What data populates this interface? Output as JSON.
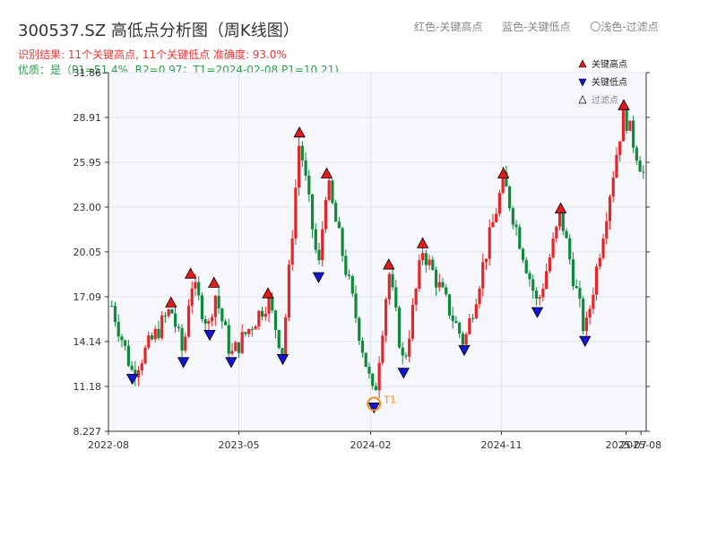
{
  "header": {
    "title": "300537.SZ 高低点分析图（周K线图）",
    "result_line": "识别结果: 11个关键高点, 11个关键低点   准确度: 93.0%",
    "quality_line": "优质：是（P1=51.4%, R2=0.97；T1=2024-02-08 P1=10.21)"
  },
  "top_legend": {
    "red": "红色-关键高点",
    "blue": "蓝色-关键低点",
    "hollow": "〇浅色-过滤点"
  },
  "colors": {
    "up": "#e4262b",
    "down": "#0f8a3c",
    "high_marker": "#e31a1c",
    "low_marker": "#1414d8",
    "t1": "#f28c28",
    "grid": "#e0e4ea",
    "plot_bg": "#f6f7fa"
  },
  "chart_data": {
    "type": "candlestick",
    "ylim": [
      8.227,
      31.86
    ],
    "y_ticks": [
      "8.227",
      "11.18",
      "14.14",
      "17.09",
      "20.05",
      "23.00",
      "25.95",
      "28.91",
      "31.86"
    ],
    "x_ticks": [
      "2022-08",
      "2023-05",
      "2024-02",
      "2024-11",
      "2025-07",
      "2025-08"
    ],
    "x_range": [
      "2022-08-01",
      "2025-08-31"
    ],
    "legend": [
      {
        "label": "关键高点",
        "icon": "up-triangle-red"
      },
      {
        "label": "关键低点",
        "icon": "down-triangle-blue"
      },
      {
        "label": "过滤点",
        "icon": "up-triangle-hollow"
      }
    ],
    "key_highs": [
      {
        "date": "2022-12-10",
        "value": 16.3
      },
      {
        "date": "2023-01-20",
        "value": 18.2
      },
      {
        "date": "2023-03-10",
        "value": 17.6
      },
      {
        "date": "2023-07-01",
        "value": 16.9
      },
      {
        "date": "2023-09-05",
        "value": 27.5
      },
      {
        "date": "2023-11-01",
        "value": 24.8
      },
      {
        "date": "2024-03-10",
        "value": 18.8
      },
      {
        "date": "2024-05-20",
        "value": 20.2
      },
      {
        "date": "2024-11-05",
        "value": 24.8
      },
      {
        "date": "2025-03-05",
        "value": 22.5
      },
      {
        "date": "2025-07-15",
        "value": 29.3
      }
    ],
    "key_lows": [
      {
        "date": "2022-09-20",
        "value": 12.1
      },
      {
        "date": "2023-01-05",
        "value": 13.2
      },
      {
        "date": "2023-03-01",
        "value": 15.0
      },
      {
        "date": "2023-04-15",
        "value": 13.2
      },
      {
        "date": "2023-08-01",
        "value": 13.4
      },
      {
        "date": "2023-10-15",
        "value": 18.8
      },
      {
        "date": "2024-02-08",
        "value": 10.21
      },
      {
        "date": "2024-04-10",
        "value": 12.5
      },
      {
        "date": "2024-08-15",
        "value": 14.0
      },
      {
        "date": "2025-01-15",
        "value": 16.5
      },
      {
        "date": "2025-04-25",
        "value": 14.6
      }
    ],
    "t1": {
      "label": "T1",
      "date": "2024-02-08",
      "value": 10.21
    }
  }
}
